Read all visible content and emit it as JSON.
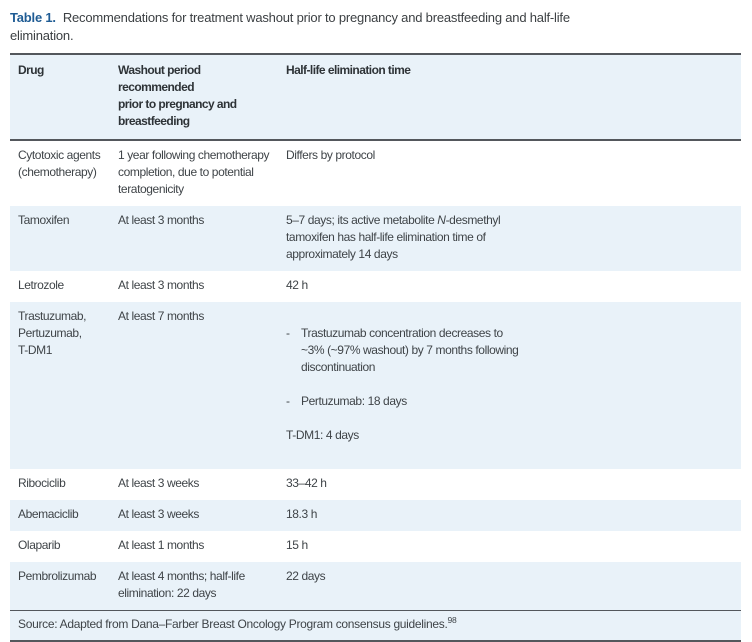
{
  "colors": {
    "accent_blue": "#1f5c94",
    "row_stripe": "#e9f2f9",
    "rule_dark": "#53575c",
    "body_text": "#3f4448"
  },
  "caption": {
    "label": "Table 1.",
    "text": "Recommendations for treatment washout prior to pregnancy and breastfeeding and half-life\nelimination."
  },
  "table": {
    "columns": [
      "Drug",
      "Washout period recommended\nprior to pregnancy and\nbreastfeeding",
      "Half-life elimination time"
    ],
    "rows": [
      {
        "drug": "Cytotoxic agents\n(chemotherapy)",
        "washout": "1 year following chemotherapy\ncompletion, due to potential\nteratogenicity",
        "half_life": "Differs by protocol"
      },
      {
        "drug": "Tamoxifen",
        "washout": "At least 3 months",
        "half_life_pre": "5–7 days; its active metabolite ",
        "half_life_italic": "N",
        "half_life_post": "-desmethyl\ntamoxifen has half-life elimination time of\napproximately 14 days"
      },
      {
        "drug": "Letrozole",
        "washout": "At least 3 months",
        "half_life": "42 h"
      },
      {
        "drug": "Trastuzumab,\nPertuzumab,\nT-DM1",
        "washout": "At least 7 months",
        "half_life_items": [
          {
            "marker": "-",
            "text": "Trastuzumab concentration decreases to\n~3% (~97% washout) by 7 months following\ndiscontinuation"
          },
          {
            "marker": "-",
            "text": "Pertuzumab: 18 days"
          }
        ],
        "half_life_tail": "T-DM1: 4 days"
      },
      {
        "drug": "Ribociclib",
        "washout": "At least 3 weeks",
        "half_life": "33–42 h"
      },
      {
        "drug": "Abemaciclib",
        "washout": "At least 3 weeks",
        "half_life": "18.3 h"
      },
      {
        "drug": "Olaparib",
        "washout": "At least 1 months",
        "half_life": "15 h"
      },
      {
        "drug": "Pembrolizumab",
        "washout": "At least 4 months; half-life\nelimination: 22 days",
        "half_life": "22 days"
      }
    ],
    "source": {
      "text": "Source: Adapted from Dana–Farber Breast Oncology Program consensus guidelines.",
      "reference": "98"
    }
  }
}
